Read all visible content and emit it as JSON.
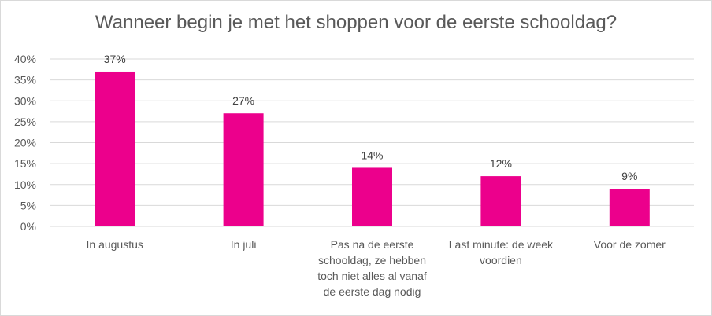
{
  "chart_data": {
    "type": "bar",
    "title": "Wanneer begin je met het shoppen voor de eerste schooldag?",
    "categories": [
      "In augustus",
      "In juli",
      "Pas na de eerste schooldag, ze hebben toch niet alles al vanaf de eerste dag nodig",
      "Last minute: de week voordien",
      "Voor de zomer"
    ],
    "category_lines": [
      [
        "In augustus"
      ],
      [
        "In juli"
      ],
      [
        "Pas na de eerste",
        "schooldag, ze hebben",
        "toch niet alles al vanaf",
        "de eerste dag nodig"
      ],
      [
        "Last minute: de week",
        "voordien"
      ],
      [
        "Voor de zomer"
      ]
    ],
    "values": [
      37,
      27,
      14,
      12,
      9
    ],
    "data_labels": [
      "37%",
      "27%",
      "14%",
      "12%",
      "9%"
    ],
    "ylim": [
      0,
      40
    ],
    "yticks": [
      "0%",
      "5%",
      "10%",
      "15%",
      "20%",
      "25%",
      "30%",
      "35%",
      "40%"
    ],
    "grid": true,
    "bar_color": "#EC008C",
    "grid_color": "#d9d9d9"
  }
}
